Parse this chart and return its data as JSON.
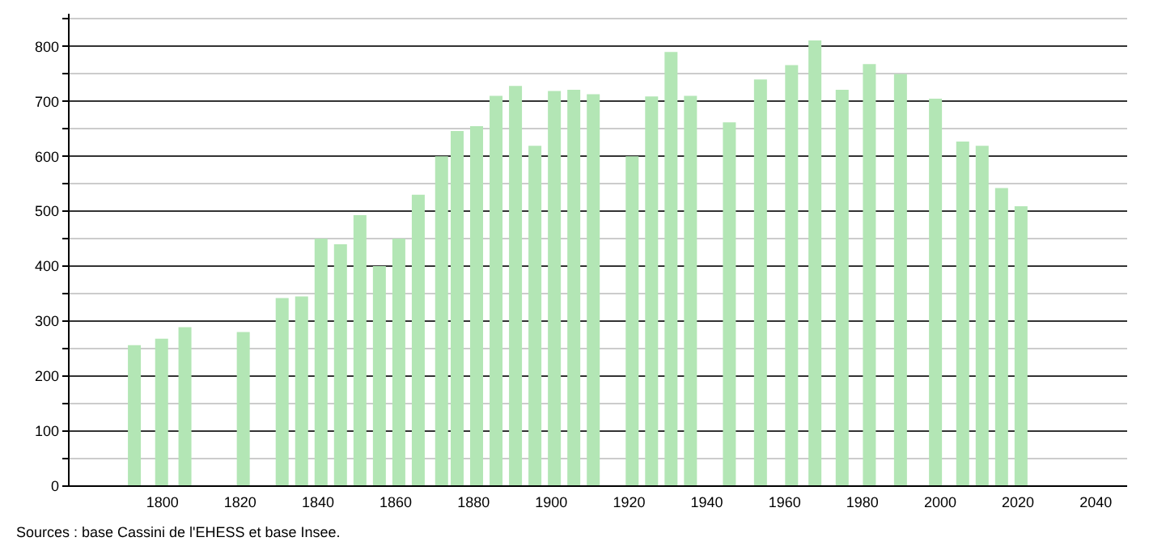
{
  "chart_data": {
    "type": "bar",
    "color": "#b3e6b5",
    "x": [
      1793,
      1800,
      1806,
      1821,
      1831,
      1836,
      1841,
      1846,
      1851,
      1856,
      1861,
      1866,
      1872,
      1876,
      1881,
      1886,
      1891,
      1896,
      1901,
      1906,
      1911,
      1921,
      1926,
      1931,
      1936,
      1946,
      1954,
      1962,
      1968,
      1975,
      1982,
      1990,
      1999,
      2006,
      2011,
      2016,
      2021
    ],
    "values": [
      255,
      267,
      288,
      279,
      341,
      344,
      449,
      439,
      492,
      399,
      449,
      529,
      599,
      645,
      654,
      709,
      727,
      618,
      718,
      720,
      712,
      599,
      708,
      789,
      709,
      661,
      739,
      765,
      810,
      720,
      767,
      749,
      704,
      626,
      618,
      541,
      508
    ],
    "xlim": [
      1778,
      2046
    ],
    "xticks": [
      1800,
      1820,
      1840,
      1860,
      1880,
      1900,
      1920,
      1940,
      1960,
      1980,
      2000,
      2020,
      2040
    ],
    "ylim": [
      0,
      860
    ],
    "yticks": [
      0,
      {
        "value": 50,
        "label": null
      },
      100,
      {
        "value": 150,
        "label": null
      },
      200,
      {
        "value": 250,
        "label": null
      },
      300,
      {
        "value": 350,
        "label": null
      },
      400,
      {
        "value": 450,
        "label": null
      },
      500,
      {
        "value": 550,
        "label": null
      },
      600,
      {
        "value": 650,
        "label": null
      },
      700,
      {
        "value": 750,
        "label": null
      },
      800,
      {
        "value": 850,
        "label": null
      }
    ],
    "grid": "y",
    "annotations": [
      "Sources : base Cassini de l'EHESS et base Insee."
    ]
  }
}
